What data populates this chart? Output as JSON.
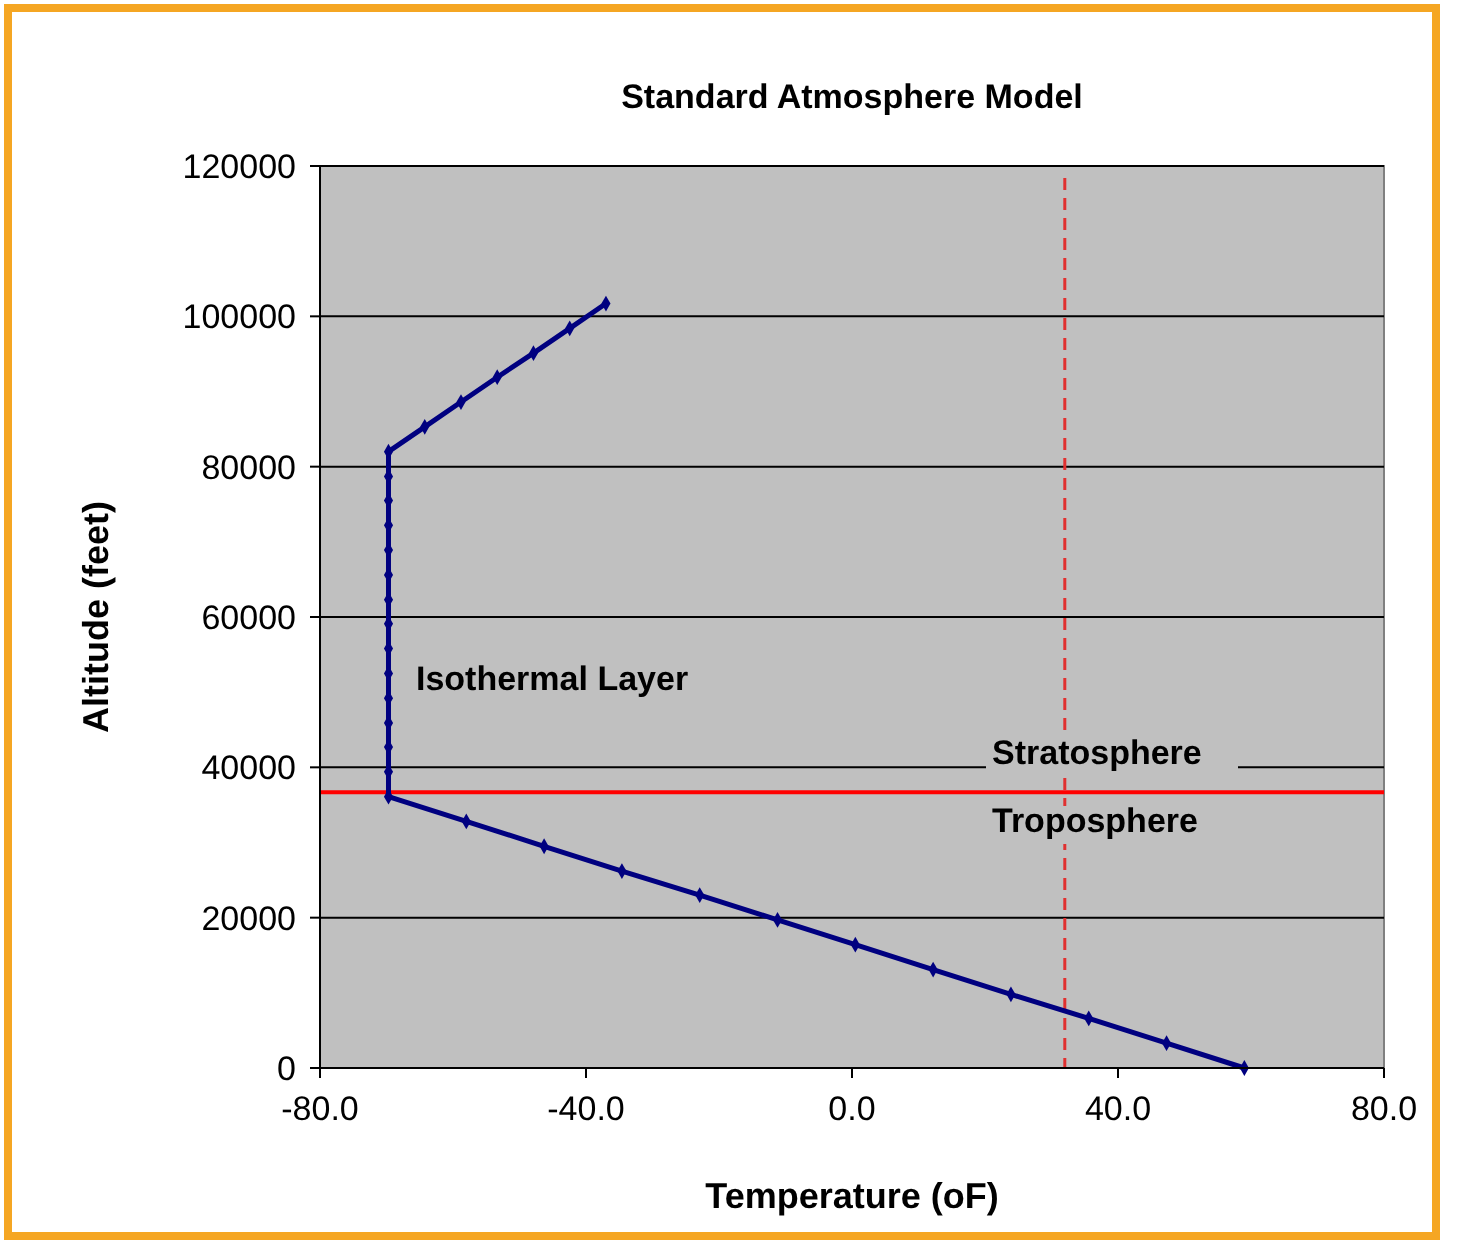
{
  "chart_data": {
    "type": "line",
    "title": "Standard Atmosphere Model",
    "xlabel": "Temperature (oF)",
    "ylabel": "Altitude (feet)",
    "series": [
      {
        "color": "#000080",
        "x": [
          59,
          47.3,
          35.6,
          23.9,
          12.2,
          0.5,
          -11.2,
          -22.9,
          -34.6,
          -46.3,
          -58,
          -69.7,
          -69.7,
          -69.7,
          -69.7,
          -69.7,
          -69.7,
          -69.7,
          -69.7,
          -69.7,
          -69.7,
          -69.7,
          -69.7,
          -69.7,
          -69.7,
          -69.7,
          -64.25,
          -58.8,
          -53.35,
          -47.9,
          -42.45,
          -37
        ],
        "values": [
          0,
          3300,
          6600,
          9800,
          13100,
          16400,
          19700,
          23000,
          26200,
          29500,
          32800,
          36100,
          39400,
          42700,
          45900,
          49200,
          52500,
          55800,
          59100,
          62300,
          65600,
          68900,
          72200,
          75500,
          78700,
          82000,
          85300,
          88600,
          91900,
          95100,
          98400,
          101700
        ]
      }
    ],
    "marker": "diamond",
    "line_style": "solid",
    "xlim": [
      -80,
      80
    ],
    "xticks": [
      {
        "value": -80,
        "label": "-80.0"
      },
      {
        "value": -40,
        "label": "-40.0"
      },
      {
        "value": 0,
        "label": "0.0"
      },
      {
        "value": 40,
        "label": "40.0"
      },
      {
        "value": 80,
        "label": "80.0"
      }
    ],
    "ylim": [
      0,
      120000
    ],
    "yticks": [
      0,
      20000,
      40000,
      60000,
      80000,
      100000,
      120000
    ],
    "grid": "y",
    "ref_lines": [
      {
        "axis": "x",
        "value": 32,
        "color": "#e03030",
        "line_style": "dashed"
      },
      {
        "axis": "y",
        "value": 36700,
        "color": "#ff0000",
        "line_style": "solid"
      }
    ],
    "annotations": [
      "Isothermal Layer",
      "Stratosphere",
      "Troposphere"
    ]
  }
}
